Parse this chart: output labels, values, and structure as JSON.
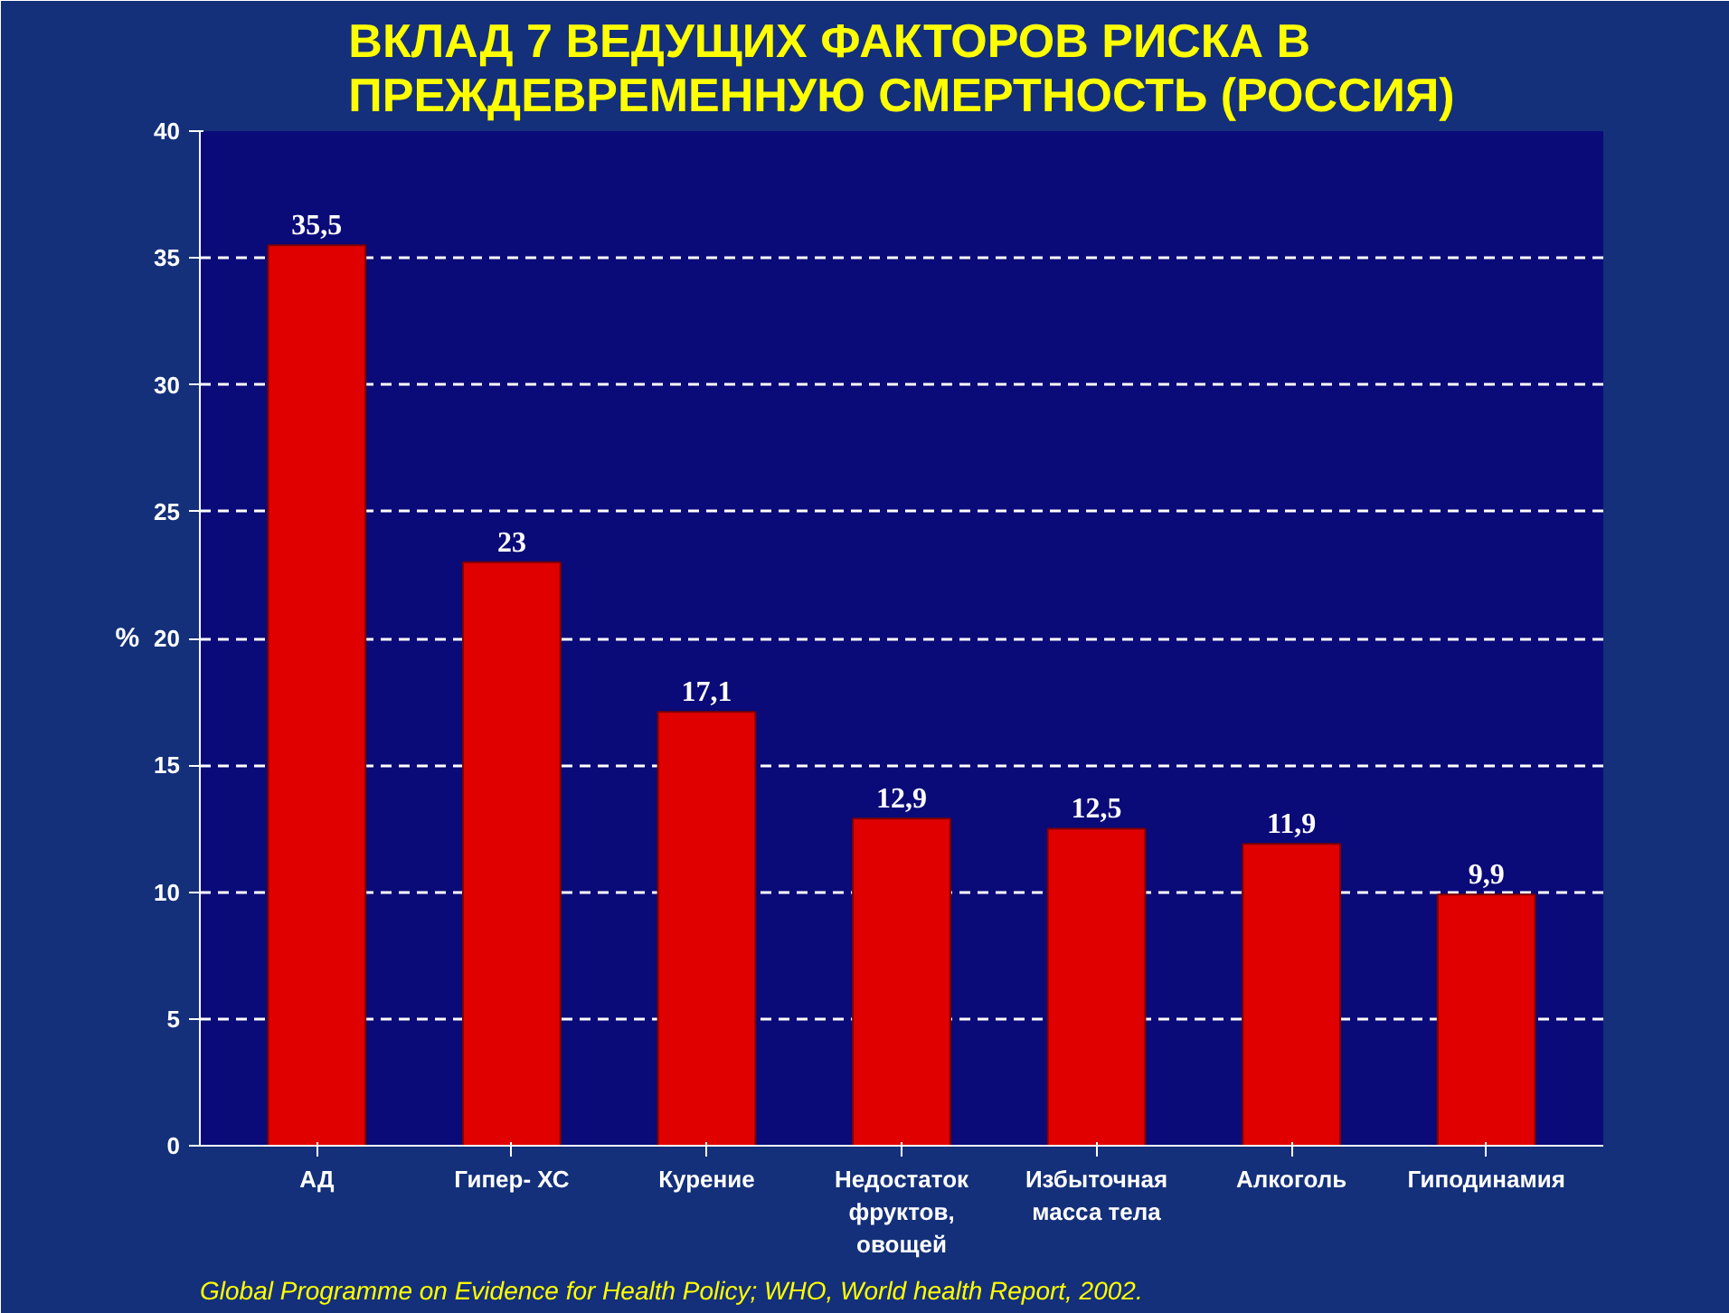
{
  "chart_data": {
    "type": "bar",
    "title": "ВКЛАД 7 ВЕДУЩИХ ФАКТОРОВ РИСКА В ПРЕЖДЕВРЕМЕННУЮ СМЕРТНОСТЬ (РОССИЯ)",
    "ylabel": "%",
    "categories": [
      "АД",
      "Гипер- ХС",
      "Курение",
      "Недостаток фруктов, овощей",
      "Избыточная масса тела",
      "Алкоголь",
      "Гиподинамия"
    ],
    "values": [
      35.5,
      23,
      17.1,
      12.9,
      12.5,
      11.9,
      9.9
    ],
    "value_labels": [
      "35,5",
      "23",
      "17,1",
      "12,9",
      "12,5",
      "11,9",
      "9,9"
    ],
    "color": "#e00000",
    "ylim": [
      0,
      40
    ],
    "yticks": [
      0,
      5,
      10,
      15,
      20,
      25,
      30,
      35,
      40
    ],
    "grid": "y",
    "annotations": [
      "Global Programme  on Evidence for Health Policy; WHO, World health Report, 2002."
    ]
  }
}
